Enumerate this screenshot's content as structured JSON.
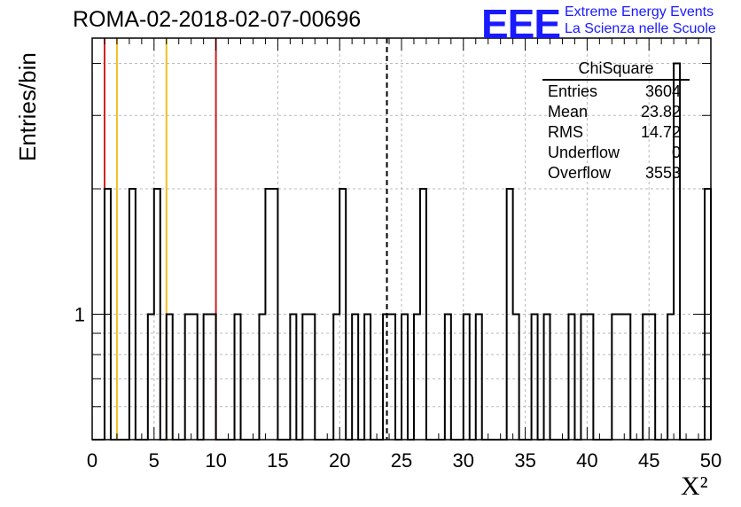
{
  "header": {
    "title": "ROMA-02-2018-02-07-00696",
    "logo_text": "EEE",
    "brand_line1": "Extreme Energy Events",
    "brand_line2": "La Scienza nelle Scuole",
    "brand_color": "#1a1aff"
  },
  "stats_box": {
    "title": "ChiSquare",
    "rows": [
      {
        "label": "Entries",
        "value": "3604"
      },
      {
        "label": "Mean",
        "value": "23.82"
      },
      {
        "label": "RMS",
        "value": "14.72"
      },
      {
        "label": "Underflow",
        "value": "0"
      },
      {
        "label": "Overflow",
        "value": "3553"
      }
    ]
  },
  "chart_data": {
    "type": "bar",
    "histogram": "step",
    "title": "ROMA-02-2018-02-07-00696",
    "xlabel": "X²",
    "ylabel": "Entries/bin",
    "xlim": [
      0,
      50
    ],
    "ylim": [
      0.5,
      4.6
    ],
    "y_log_scale": true,
    "grid": true,
    "x_ticks": [
      0,
      5,
      10,
      15,
      20,
      25,
      30,
      35,
      40,
      45,
      50
    ],
    "y_tick_labels": [
      {
        "value": 1,
        "label": "1"
      }
    ],
    "bin_width": 0.5,
    "bins_nonzero": [
      {
        "x": 1.0,
        "count": 2
      },
      {
        "x": 3.0,
        "count": 2
      },
      {
        "x": 4.5,
        "count": 1
      },
      {
        "x": 5.0,
        "count": 2
      },
      {
        "x": 6.0,
        "count": 1
      },
      {
        "x": 7.5,
        "count": 1
      },
      {
        "x": 8.0,
        "count": 1
      },
      {
        "x": 9.0,
        "count": 1
      },
      {
        "x": 9.5,
        "count": 1
      },
      {
        "x": 11.5,
        "count": 1
      },
      {
        "x": 13.5,
        "count": 1
      },
      {
        "x": 14.0,
        "count": 2
      },
      {
        "x": 14.5,
        "count": 2
      },
      {
        "x": 16.0,
        "count": 1
      },
      {
        "x": 17.0,
        "count": 1
      },
      {
        "x": 17.5,
        "count": 1
      },
      {
        "x": 19.5,
        "count": 1
      },
      {
        "x": 20.0,
        "count": 2
      },
      {
        "x": 21.0,
        "count": 1
      },
      {
        "x": 22.0,
        "count": 1
      },
      {
        "x": 23.5,
        "count": 1
      },
      {
        "x": 24.0,
        "count": 1
      },
      {
        "x": 25.0,
        "count": 1
      },
      {
        "x": 26.0,
        "count": 1
      },
      {
        "x": 26.5,
        "count": 2
      },
      {
        "x": 28.5,
        "count": 1
      },
      {
        "x": 30.0,
        "count": 1
      },
      {
        "x": 31.0,
        "count": 1
      },
      {
        "x": 33.5,
        "count": 2
      },
      {
        "x": 34.0,
        "count": 1
      },
      {
        "x": 35.5,
        "count": 1
      },
      {
        "x": 36.5,
        "count": 1
      },
      {
        "x": 38.5,
        "count": 1
      },
      {
        "x": 39.5,
        "count": 1
      },
      {
        "x": 40.0,
        "count": 1
      },
      {
        "x": 42.0,
        "count": 1
      },
      {
        "x": 42.5,
        "count": 1
      },
      {
        "x": 43.0,
        "count": 1
      },
      {
        "x": 44.5,
        "count": 1
      },
      {
        "x": 45.0,
        "count": 1
      },
      {
        "x": 46.5,
        "count": 1
      },
      {
        "x": 47.0,
        "count": 4
      },
      {
        "x": 49.5,
        "count": 2
      }
    ],
    "reference_lines": [
      {
        "x": 1,
        "color": "#cc2222",
        "style": "solid"
      },
      {
        "x": 2,
        "color": "#f0c020",
        "style": "solid"
      },
      {
        "x": 6,
        "color": "#f0c020",
        "style": "solid"
      },
      {
        "x": 10,
        "color": "#cc2222",
        "style": "solid"
      },
      {
        "x": 23.82,
        "color": "#000000",
        "style": "dashed"
      }
    ]
  }
}
